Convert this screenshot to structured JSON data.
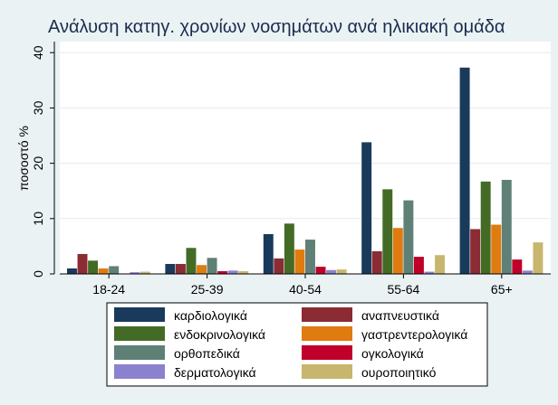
{
  "chart_data": {
    "type": "bar",
    "title": "Ανάλυση κατηγ. χρονίων νοσημάτων ανά ηλικιακή ομάδα",
    "xlabel": "",
    "ylabel": "ποσοστό %",
    "ylim": [
      0,
      42
    ],
    "yticks": [
      0,
      10,
      20,
      30,
      40
    ],
    "categories": [
      "18-24",
      "25-39",
      "40-54",
      "55-64",
      "65+"
    ],
    "grid": true,
    "legend_position": "bottom",
    "series": [
      {
        "name": "καρδιολογικά",
        "color": "#1a3a5c",
        "values": [
          1.0,
          1.8,
          7.2,
          23.8,
          37.3
        ]
      },
      {
        "name": "αναπνευστικά",
        "color": "#8b2b33",
        "values": [
          3.6,
          1.8,
          2.8,
          4.1,
          8.1
        ]
      },
      {
        "name": "ενδοκρινολογικά",
        "color": "#436b26",
        "values": [
          2.4,
          4.7,
          9.1,
          15.3,
          16.7
        ]
      },
      {
        "name": "γαστρεντερολογικά",
        "color": "#e07b10",
        "values": [
          1.0,
          1.6,
          4.4,
          8.3,
          8.9
        ]
      },
      {
        "name": "ορθοπεδικά",
        "color": "#5f8076",
        "values": [
          1.4,
          2.9,
          6.2,
          13.3,
          17.0
        ]
      },
      {
        "name": "ογκολογικά",
        "color": "#c0002a",
        "values": [
          0.0,
          0.5,
          1.3,
          3.1,
          2.6
        ]
      },
      {
        "name": "δερματολογικά",
        "color": "#8a82cf",
        "values": [
          0.3,
          0.6,
          0.7,
          0.4,
          0.6
        ]
      },
      {
        "name": "ουροποιητικό",
        "color": "#c7b66d",
        "values": [
          0.4,
          0.5,
          0.8,
          3.4,
          5.7
        ]
      }
    ]
  }
}
